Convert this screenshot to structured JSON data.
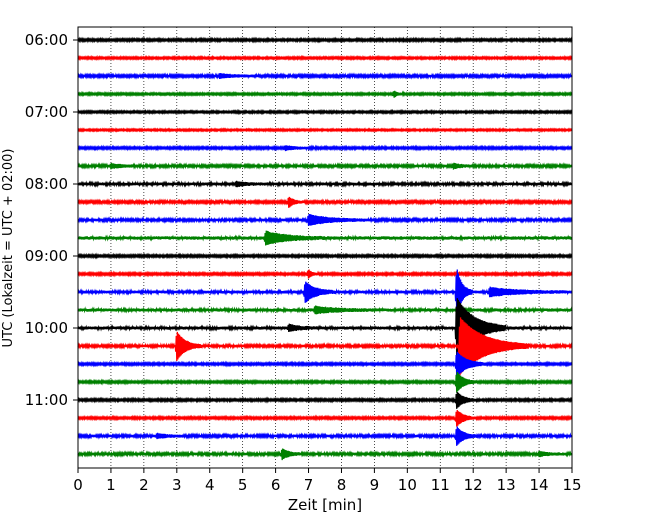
{
  "chart_data": {
    "type": "line",
    "title": "",
    "xlabel": "Zeit  [min]",
    "ylabel": "UTC (Lokalzeit = UTC + 02:00)",
    "xlim": [
      0,
      15
    ],
    "x_ticks": [
      0,
      1,
      2,
      3,
      4,
      5,
      6,
      7,
      8,
      9,
      10,
      11,
      12,
      13,
      14,
      15
    ],
    "x_tick_labels": [
      "0",
      "1",
      "2",
      "3",
      "4",
      "5",
      "6",
      "7",
      "8",
      "9",
      "10",
      "11",
      "12",
      "13",
      "14",
      "15"
    ],
    "y_tick_labels": [
      "06:00",
      "07:00",
      "08:00",
      "09:00",
      "10:00",
      "11:00"
    ],
    "grid": "vertical dotted",
    "trace_interval_minutes": 15,
    "first_trace_time": "06:00",
    "trace_colors": [
      "#000000",
      "#ff0000",
      "#0000ff",
      "#008000"
    ],
    "traces": [
      {
        "start": "06:00",
        "color": "#000000",
        "noise": 0.9,
        "events": []
      },
      {
        "start": "06:15",
        "color": "#ff0000",
        "noise": 0.8,
        "events": []
      },
      {
        "start": "06:30",
        "color": "#0000ff",
        "noise": 1.0,
        "events": [
          {
            "t": 4.3,
            "amp": 2,
            "dur": 0.4
          }
        ]
      },
      {
        "start": "06:45",
        "color": "#008000",
        "noise": 0.8,
        "events": [
          {
            "t": 9.6,
            "amp": 3,
            "dur": 0.1
          }
        ]
      },
      {
        "start": "07:00",
        "color": "#000000",
        "noise": 0.8,
        "events": []
      },
      {
        "start": "07:15",
        "color": "#ff0000",
        "noise": 0.7,
        "events": []
      },
      {
        "start": "07:30",
        "color": "#0000ff",
        "noise": 0.9,
        "events": [
          {
            "t": 6.3,
            "amp": 2,
            "dur": 0.3
          }
        ]
      },
      {
        "start": "07:45",
        "color": "#008000",
        "noise": 1.1,
        "events": [
          {
            "t": 1.0,
            "amp": 2,
            "dur": 0.3
          },
          {
            "t": 11.4,
            "amp": 2.5,
            "dur": 0.2
          }
        ]
      },
      {
        "start": "08:00",
        "color": "#000000",
        "noise": 1.2,
        "events": [
          {
            "t": 4.8,
            "amp": 2,
            "dur": 0.3
          }
        ]
      },
      {
        "start": "08:15",
        "color": "#ff0000",
        "noise": 1.0,
        "events": [
          {
            "t": 6.4,
            "amp": 5,
            "dur": 0.15
          }
        ]
      },
      {
        "start": "08:30",
        "color": "#0000ff",
        "noise": 1.1,
        "events": [
          {
            "t": 7.0,
            "amp": 5,
            "dur": 0.6
          }
        ]
      },
      {
        "start": "08:45",
        "color": "#008000",
        "noise": 1.4,
        "events": [
          {
            "t": 5.7,
            "amp": 6,
            "dur": 0.6
          }
        ]
      },
      {
        "start": "09:00",
        "color": "#000000",
        "noise": 0.9,
        "events": []
      },
      {
        "start": "09:15",
        "color": "#ff0000",
        "noise": 0.9,
        "events": [
          {
            "t": 7.0,
            "amp": 4,
            "dur": 0.1
          }
        ]
      },
      {
        "start": "09:30",
        "color": "#0000ff",
        "noise": 1.2,
        "events": [
          {
            "t": 6.9,
            "amp": 10,
            "dur": 0.3
          },
          {
            "t": 11.5,
            "amp": 24,
            "dur": 0.15
          },
          {
            "t": 12.5,
            "amp": 4,
            "dur": 0.8
          }
        ]
      },
      {
        "start": "09:45",
        "color": "#008000",
        "noise": 1.3,
        "events": [
          {
            "t": 7.2,
            "amp": 3,
            "dur": 0.6
          }
        ]
      },
      {
        "start": "10:00",
        "color": "#000000",
        "noise": 1.3,
        "events": [
          {
            "t": 6.4,
            "amp": 3,
            "dur": 0.3
          },
          {
            "t": 11.5,
            "amp": 30,
            "dur": 0.5
          }
        ]
      },
      {
        "start": "10:15",
        "color": "#ff0000",
        "noise": 1.1,
        "events": [
          {
            "t": 3.0,
            "amp": 14,
            "dur": 0.25
          },
          {
            "t": 11.6,
            "amp": 28,
            "dur": 0.7
          }
        ]
      },
      {
        "start": "10:30",
        "color": "#0000ff",
        "noise": 0.9,
        "events": [
          {
            "t": 11.5,
            "amp": 12,
            "dur": 0.3
          }
        ]
      },
      {
        "start": "10:45",
        "color": "#008000",
        "noise": 0.9,
        "events": [
          {
            "t": 11.5,
            "amp": 10,
            "dur": 0.2
          }
        ]
      },
      {
        "start": "11:00",
        "color": "#000000",
        "noise": 0.9,
        "events": [
          {
            "t": 11.5,
            "amp": 8,
            "dur": 0.2
          }
        ]
      },
      {
        "start": "11:15",
        "color": "#ff0000",
        "noise": 0.9,
        "events": [
          {
            "t": 11.5,
            "amp": 8,
            "dur": 0.2
          }
        ]
      },
      {
        "start": "11:30",
        "color": "#0000ff",
        "noise": 1.1,
        "events": [
          {
            "t": 2.4,
            "amp": 2,
            "dur": 0.3
          },
          {
            "t": 11.5,
            "amp": 9,
            "dur": 0.2
          }
        ]
      },
      {
        "start": "11:45",
        "color": "#008000",
        "noise": 1.1,
        "events": [
          {
            "t": 6.2,
            "amp": 5,
            "dur": 0.2
          },
          {
            "t": 14.0,
            "amp": 2,
            "dur": 0.3
          }
        ]
      }
    ]
  }
}
